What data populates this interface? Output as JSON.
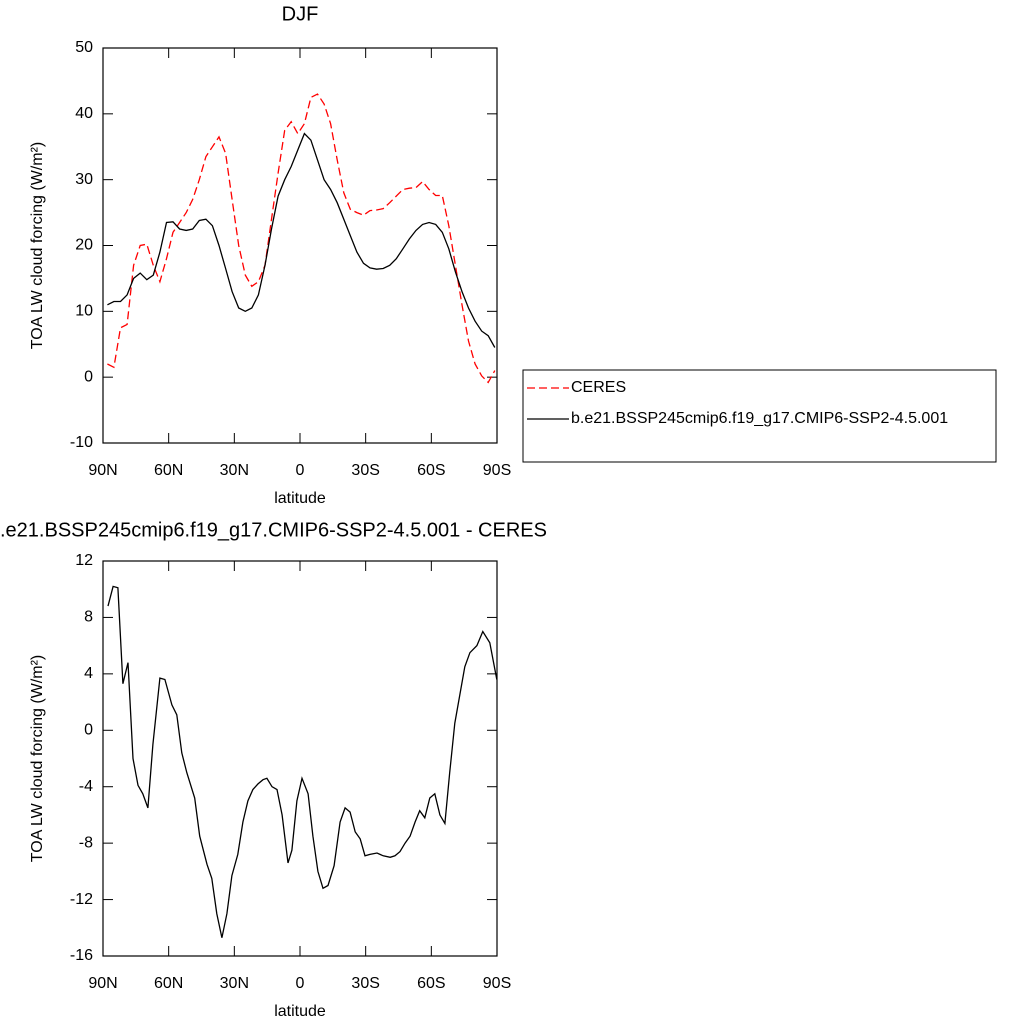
{
  "chart_data": [
    {
      "type": "line",
      "title": "DJF",
      "xlabel": "latitude",
      "ylabel": "TOA LW cloud forcing (W/m²)",
      "x": [
        88,
        85,
        82,
        79,
        76,
        73,
        70,
        67,
        64,
        61,
        58,
        55,
        52,
        49,
        46,
        43,
        40,
        37,
        34,
        31,
        28,
        25,
        22,
        19,
        16,
        13,
        10,
        7,
        4,
        1,
        -2,
        -5,
        -8,
        -11,
        -14,
        -17,
        -20,
        -23,
        -26,
        -29,
        -32,
        -35,
        -38,
        -41,
        -44,
        -47,
        -50,
        -53,
        -56,
        -59,
        -62,
        -65,
        -68,
        -71,
        -74,
        -77,
        -80,
        -83,
        -86,
        -89
      ],
      "series": [
        {
          "name": "CERES",
          "color": "#ff0000",
          "line_style": "dashed",
          "values": [
            2,
            1.5,
            7.5,
            8,
            17,
            20,
            20.2,
            17,
            14.5,
            18,
            22,
            23.5,
            25,
            27,
            30,
            33.5,
            35,
            36.5,
            34,
            27,
            20,
            15.5,
            13.8,
            14.5,
            17,
            24,
            31,
            37.5,
            38.8,
            37,
            38.5,
            42.5,
            43,
            41.5,
            38.5,
            33,
            28,
            25.5,
            25,
            24.6,
            25.3,
            25.4,
            25.6,
            26.5,
            27.5,
            28.5,
            28.7,
            28.8,
            29.7,
            28.5,
            27.6,
            27.6,
            23,
            17,
            11,
            5.5,
            2,
            0.2,
            -0.8,
            1
          ]
        },
        {
          "name": "b.e21.BSSP245cmip6.f19_g17.CMIP6-SSP2-4.5.001",
          "color": "#000000",
          "line_style": "solid",
          "values": [
            11,
            11.5,
            11.5,
            12.5,
            15,
            15.8,
            14.8,
            15.5,
            19,
            23.5,
            23.6,
            22.5,
            22.3,
            22.5,
            23.8,
            24,
            23,
            20,
            16.5,
            13,
            10.5,
            10,
            10.5,
            12.5,
            17,
            22.5,
            27.5,
            30,
            32,
            34.5,
            37,
            36,
            33,
            30,
            28.5,
            26.5,
            24,
            21.5,
            19,
            17.3,
            16.6,
            16.4,
            16.5,
            17,
            18,
            19.5,
            21,
            22.3,
            23.2,
            23.5,
            23.2,
            22,
            19.5,
            16,
            13,
            10.5,
            8.5,
            7,
            6.3,
            4.5
          ]
        }
      ],
      "xlim": [
        90,
        -90
      ],
      "xticks": [
        {
          "value": 90,
          "label": "90N"
        },
        {
          "value": 60,
          "label": "60N"
        },
        {
          "value": 30,
          "label": "30N"
        },
        0,
        {
          "value": -30,
          "label": "30S"
        },
        {
          "value": -60,
          "label": "60S"
        },
        {
          "value": -90,
          "label": "90S"
        }
      ],
      "ylim": [
        -10,
        50
      ],
      "yticks": [
        -10,
        0,
        10,
        20,
        30,
        40,
        50
      ],
      "legend": "outside-right"
    },
    {
      "type": "line",
      "title": ".e21.BSSP245cmip6.f19_g17.CMIP6-SSP2-4.5.001 - CERES",
      "xlabel": "latitude",
      "ylabel": "TOA LW cloud forcing (W/m²)",
      "x": [
        87.7,
        85.4,
        83.2,
        80.9,
        78.6,
        76.3,
        74,
        71.8,
        69.5,
        67.2,
        64,
        61.7,
        58.5,
        56.3,
        54,
        51.7,
        48.1,
        45.8,
        42.5,
        40.3,
        38,
        35.7,
        33.4,
        31.1,
        28.4,
        26.1,
        23.8,
        21.5,
        19.2,
        16.9,
        15.1,
        12.8,
        10.5,
        8.2,
        5.5,
        3.7,
        1.4,
        -0.9,
        -3.7,
        -5.9,
        -8.2,
        -10.5,
        -12.8,
        -15.6,
        -18.3,
        -20.6,
        -22.9,
        -25.2,
        -27.5,
        -29.7,
        -32,
        -35.2,
        -38,
        -41.2,
        -43.4,
        -45.7,
        -48,
        -50.3,
        -52.6,
        -54.7,
        -57,
        -59.3,
        -61.6,
        -63.9,
        -66.2,
        -68.4,
        -70.7,
        -73,
        -75.3,
        -77.6,
        -80.8,
        -83.5,
        -86.7,
        -89.9
      ],
      "series": [
        {
          "name": null,
          "color": "#000000",
          "line_style": "solid",
          "values": [
            8.8,
            10.2,
            10.1,
            3.3,
            4.8,
            -2,
            -3.9,
            -4.5,
            -5.5,
            -1,
            3.7,
            3.6,
            1.8,
            1.1,
            -1.6,
            -3,
            -4.8,
            -7.5,
            -9.5,
            -10.5,
            -13,
            -14.7,
            -13,
            -10.3,
            -8.8,
            -6.5,
            -5,
            -4.2,
            -3.8,
            -3.5,
            -3.4,
            -4,
            -4.2,
            -6,
            -9.4,
            -8.5,
            -5,
            -3.4,
            -4.5,
            -7.5,
            -10,
            -11.2,
            -11,
            -9.6,
            -6.5,
            -5.5,
            -5.8,
            -7.2,
            -7.7,
            -8.9,
            -8.8,
            -8.7,
            -8.9,
            -9,
            -8.9,
            -8.6,
            -8,
            -7.5,
            -6.5,
            -5.7,
            -6.2,
            -4.8,
            -4.5,
            -6,
            -6.6,
            -3,
            0.5,
            2.5,
            4.5,
            5.5,
            6,
            7,
            6.2,
            3.6
          ]
        }
      ],
      "xlim": [
        90,
        -90
      ],
      "xticks": [
        {
          "value": 90,
          "label": "90N"
        },
        {
          "value": 60,
          "label": "60N"
        },
        {
          "value": 30,
          "label": "30N"
        },
        0,
        {
          "value": -30,
          "label": "30S"
        },
        {
          "value": -60,
          "label": "60S"
        },
        {
          "value": -90,
          "label": "90S"
        }
      ],
      "ylim": [
        -16,
        12
      ],
      "yticks": [
        -16,
        -12,
        -8,
        -4,
        0,
        4,
        8,
        12
      ]
    }
  ]
}
